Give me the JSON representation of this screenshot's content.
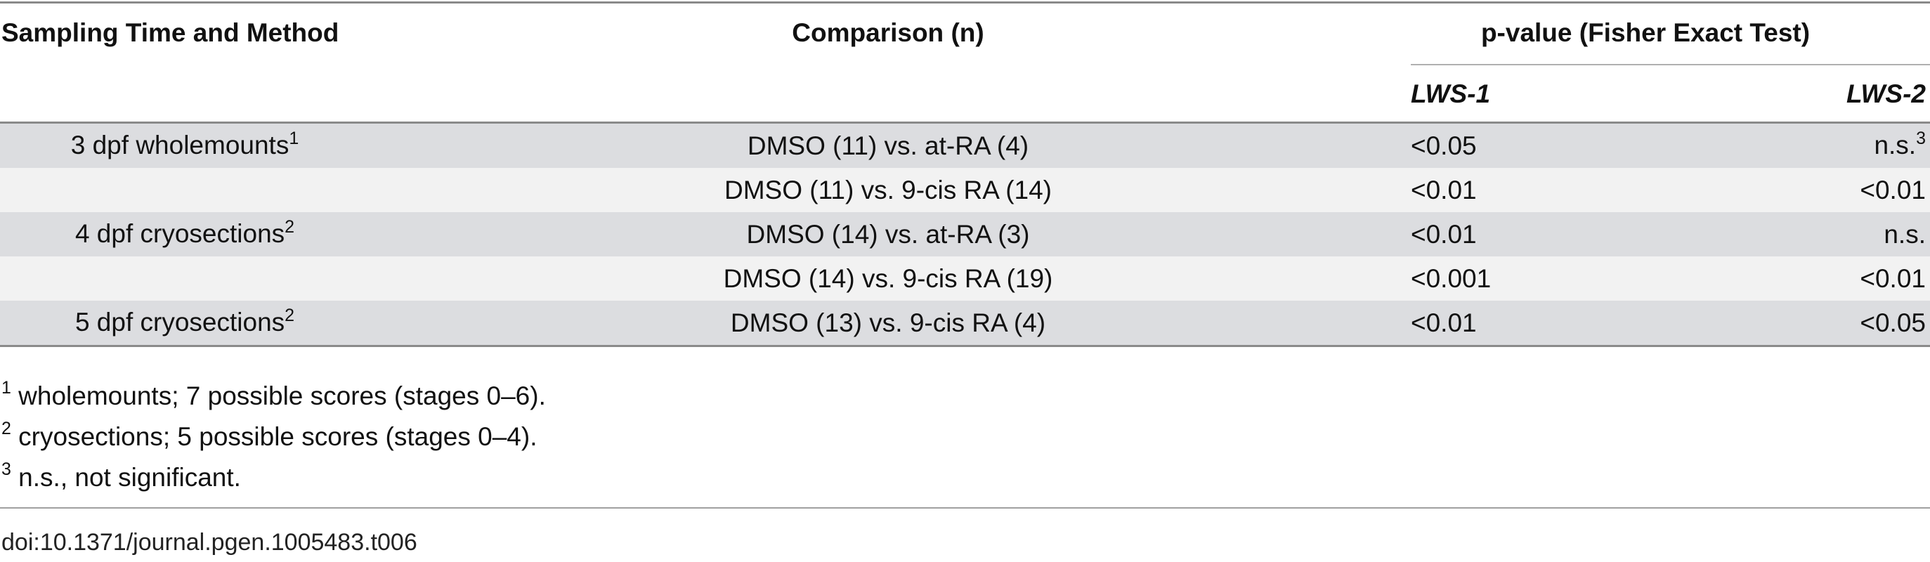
{
  "table": {
    "headers": {
      "col1": "Sampling Time and Method",
      "col2": "Comparison (n)",
      "col3": "p-value (Fisher Exact Test)",
      "sub1": "LWS-1",
      "sub2": "LWS-2"
    },
    "rows": [
      {
        "time": "3 dpf wholemounts",
        "time_sup": "1",
        "comparison": "DMSO (11) vs. at-RA (4)",
        "lws1": "<0.05",
        "lws2": "n.s.",
        "lws2_sup": "3"
      },
      {
        "time": "",
        "time_sup": "",
        "comparison": "DMSO (11) vs. 9-cis RA (14)",
        "lws1": "<0.01",
        "lws2": "<0.01",
        "lws2_sup": ""
      },
      {
        "time": "4 dpf cryosections",
        "time_sup": "2",
        "comparison": "DMSO (14) vs. at-RA (3)",
        "lws1": "<0.01",
        "lws2": "n.s.",
        "lws2_sup": ""
      },
      {
        "time": "",
        "time_sup": "",
        "comparison": "DMSO (14) vs. 9-cis RA (19)",
        "lws1": "<0.001",
        "lws2": "<0.01",
        "lws2_sup": ""
      },
      {
        "time": "5 dpf cryosections",
        "time_sup": "2",
        "comparison": "DMSO (13) vs. 9-cis RA (4)",
        "lws1": "<0.01",
        "lws2": "<0.05",
        "lws2_sup": ""
      }
    ]
  },
  "footnotes": [
    {
      "mark": "1",
      "text": " wholemounts; 7 possible scores (stages 0–6)."
    },
    {
      "mark": "2",
      "text": " cryosections; 5 possible scores (stages 0–4)."
    },
    {
      "mark": "3",
      "text": " n.s., not significant."
    }
  ],
  "doi": "doi:10.1371/journal.pgen.1005483.t006"
}
